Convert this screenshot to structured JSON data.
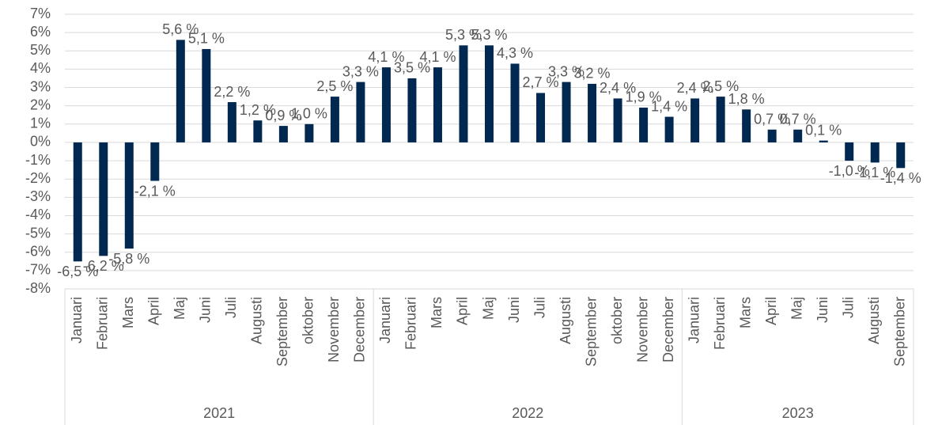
{
  "chart_data": {
    "type": "bar",
    "color": "#002850",
    "grid": true,
    "ylim": [
      -8,
      7
    ],
    "yticks": [
      {
        "value": -8,
        "label": "-8%"
      },
      {
        "value": -7,
        "label": "-7%"
      },
      {
        "value": -6,
        "label": "-6%"
      },
      {
        "value": -5,
        "label": "-5%"
      },
      {
        "value": -4,
        "label": "-4%"
      },
      {
        "value": -3,
        "label": "-3%"
      },
      {
        "value": -2,
        "label": "-2%"
      },
      {
        "value": -1,
        "label": "-1%"
      },
      {
        "value": 0,
        "label": "0%"
      },
      {
        "value": 1,
        "label": "1%"
      },
      {
        "value": 2,
        "label": "2%"
      },
      {
        "value": 3,
        "label": "3%"
      },
      {
        "value": 4,
        "label": "4%"
      },
      {
        "value": 5,
        "label": "5%"
      },
      {
        "value": 6,
        "label": "6%"
      },
      {
        "value": 7,
        "label": "7%"
      }
    ],
    "groups": [
      {
        "label": "2021",
        "categories": [
          "Januari",
          "Februari",
          "Mars",
          "April",
          "Maj",
          "Juni",
          "Juli",
          "Augusti",
          "September",
          "oktober",
          "November",
          "December"
        ],
        "values": [
          -6.5,
          -6.2,
          -5.8,
          -2.1,
          5.6,
          5.1,
          2.2,
          1.2,
          0.9,
          1.0,
          2.5,
          3.3
        ],
        "value_labels": [
          "-6,5 %",
          "-6,2 %",
          "-5,8 %",
          "-2,1 %",
          "5,6 %",
          "5,1 %",
          "2,2 %",
          "1,2 %",
          "0,9 %",
          "1,0 %",
          "2,5 %",
          "3,3 %"
        ]
      },
      {
        "label": "2022",
        "categories": [
          "Januari",
          "Februari",
          "Mars",
          "April",
          "Maj",
          "Juni",
          "Juli",
          "Augusti",
          "September",
          "oktober",
          "November",
          "December"
        ],
        "values": [
          4.1,
          3.5,
          4.1,
          5.3,
          5.3,
          4.3,
          2.7,
          3.3,
          3.2,
          2.4,
          1.9,
          1.4
        ],
        "value_labels": [
          "4,1 %",
          "3,5 %",
          "4,1 %",
          "5,3 %",
          "5,3 %",
          "4,3 %",
          "2,7 %",
          "3,3 %",
          "3,2 %",
          "2,4 %",
          "1,9 %",
          "1,4 %"
        ]
      },
      {
        "label": "2023",
        "categories": [
          "Januari",
          "Februari",
          "Mars",
          "April",
          "Maj",
          "Juni",
          "Juli",
          "Augusti",
          "September"
        ],
        "values": [
          2.4,
          2.5,
          1.8,
          0.7,
          0.7,
          0.1,
          -1.0,
          -1.1,
          -1.4
        ],
        "value_labels": [
          "2,4 %",
          "2,5 %",
          "1,8 %",
          "0,7 %",
          "0,7 %",
          "0,1 %",
          "-1,0 %",
          "-1,1 %",
          "-1,4 %"
        ]
      }
    ]
  }
}
